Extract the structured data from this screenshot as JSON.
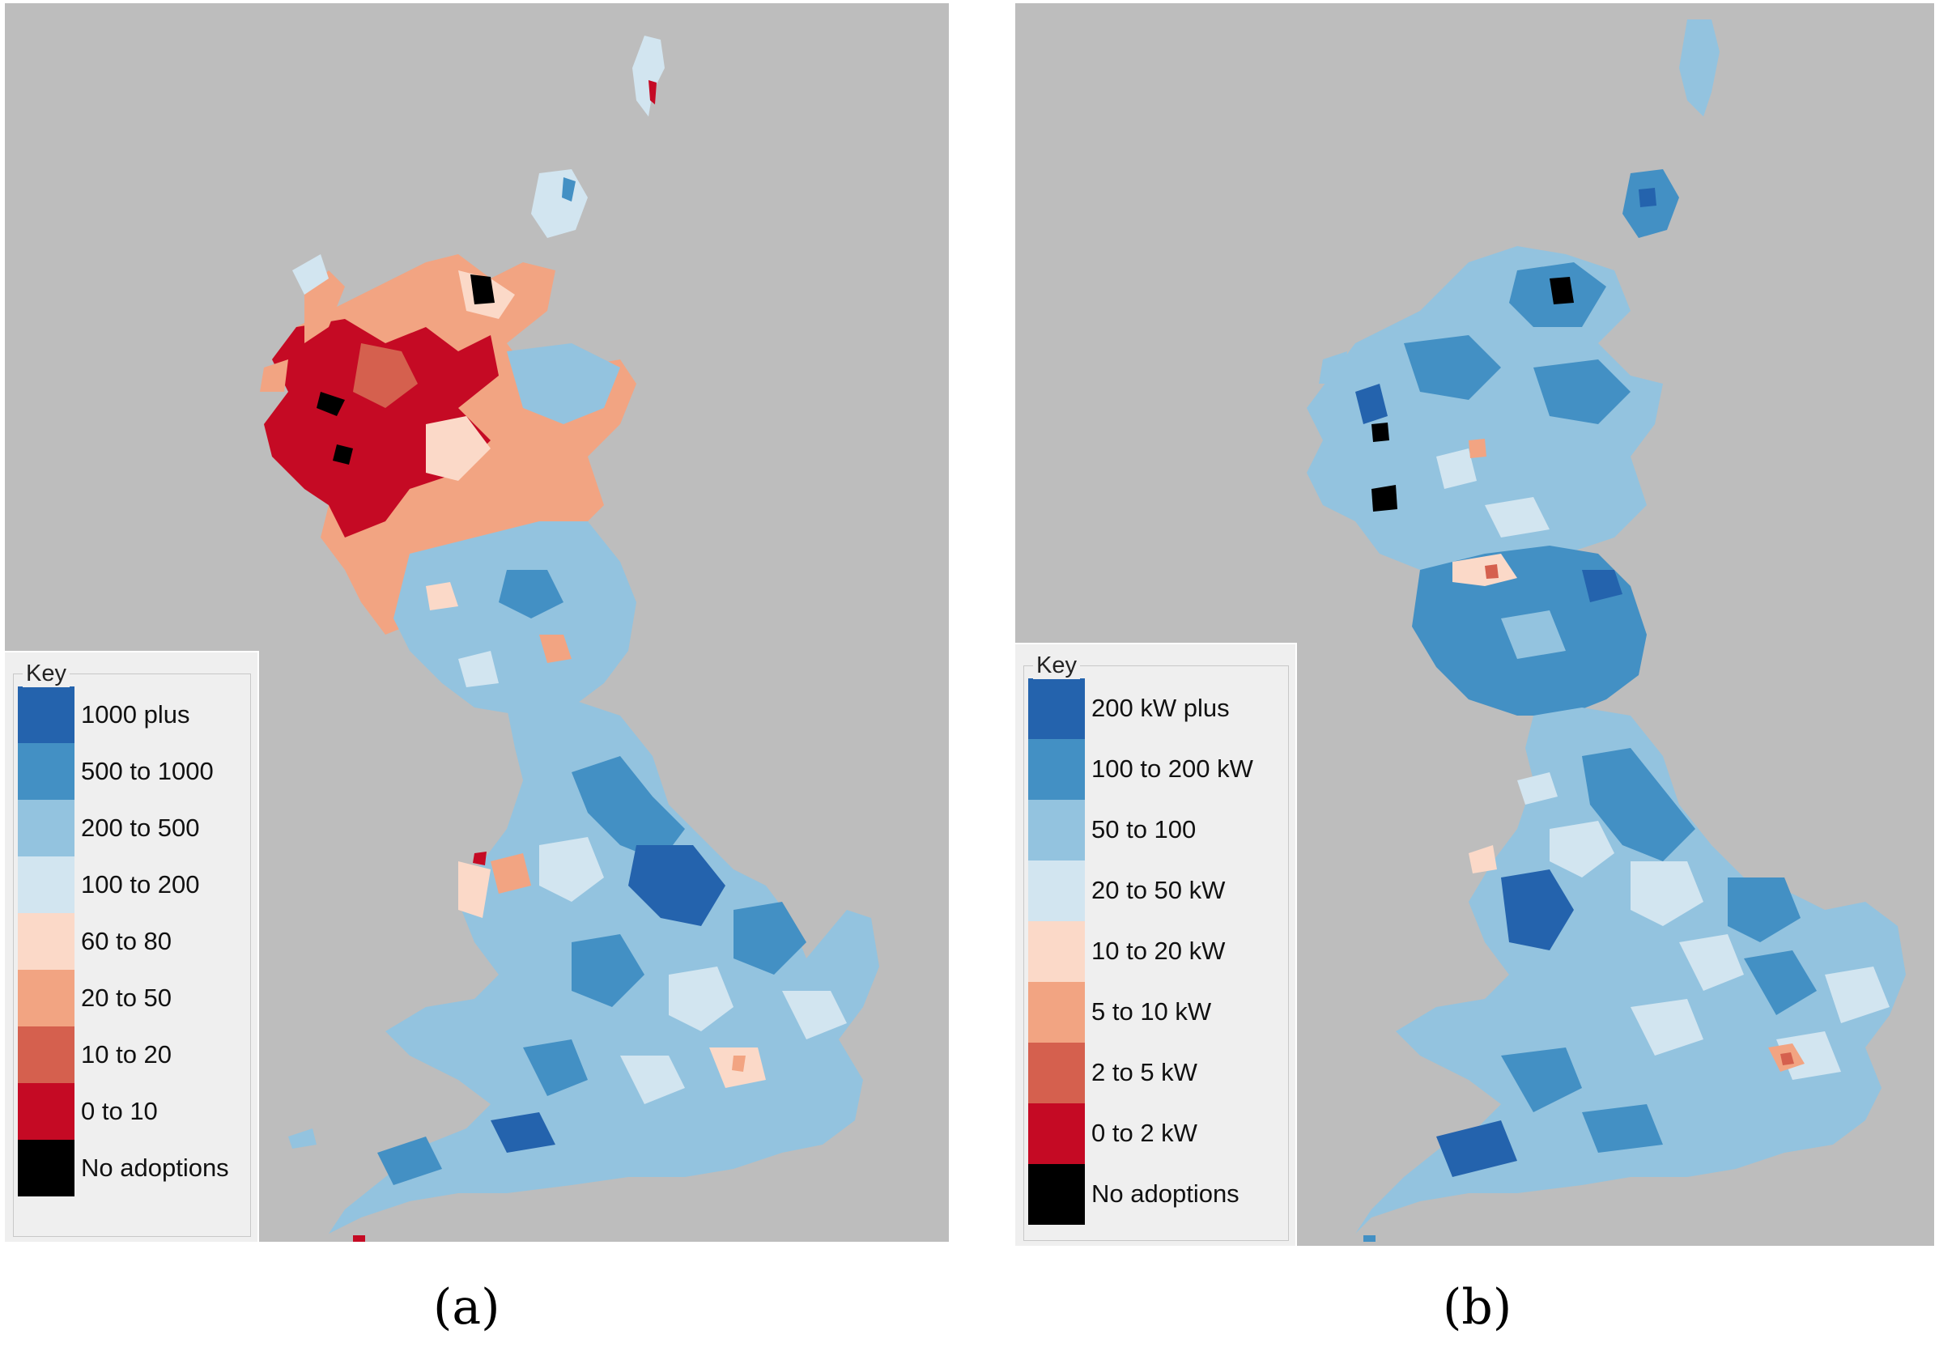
{
  "panels": [
    {
      "id": "a",
      "caption": "(a)",
      "key_title": "Key",
      "legend": [
        {
          "label": "1000 plus",
          "color": "#2463ad"
        },
        {
          "label": "500 to 1000",
          "color": "#4390c4"
        },
        {
          "label": "200 to 500",
          "color": "#93c3df"
        },
        {
          "label": "100 to 200",
          "color": "#d2e5f0"
        },
        {
          "label": "60 to 80",
          "color": "#fbd9c8"
        },
        {
          "label": "20 to 50",
          "color": "#f2a482"
        },
        {
          "label": "10 to 20",
          "color": "#d5604e"
        },
        {
          "label": "0 to 10",
          "color": "#c50a24"
        },
        {
          "label": "No adoptions",
          "color": "#000000"
        }
      ]
    },
    {
      "id": "b",
      "caption": "(b)",
      "key_title": "Key",
      "legend": [
        {
          "label": "200 kW plus",
          "color": "#2463ad"
        },
        {
          "label": "100 to 200 kW",
          "color": "#4390c4"
        },
        {
          "label": "50 to 100",
          "color": "#93c3df"
        },
        {
          "label": "20 to 50 kW",
          "color": "#d2e5f0"
        },
        {
          "label": "10 to 20 kW",
          "color": "#fbd9c8"
        },
        {
          "label": "5 to 10 kW",
          "color": "#f2a482"
        },
        {
          "label": "2 to 5 kW",
          "color": "#d5604e"
        },
        {
          "label": "0 to 2 kW",
          "color": "#c50a24"
        },
        {
          "label": "No adoptions",
          "color": "#000000"
        }
      ]
    }
  ]
}
